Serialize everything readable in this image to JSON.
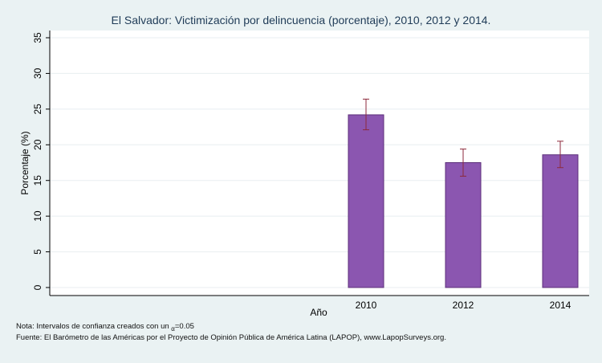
{
  "chart_data": {
    "type": "bar",
    "title": "El Salvador: Victimización por delincuencia (porcentaje), 2010, 2012 y 2014.",
    "xlabel": "Año",
    "ylabel": "Porcentaje (%)",
    "categories": [
      "2010",
      "2012",
      "2014"
    ],
    "values": [
      24.2,
      17.5,
      18.6
    ],
    "ci_low": [
      22.1,
      15.6,
      16.8
    ],
    "ci_high": [
      26.4,
      19.4,
      20.5
    ],
    "ylim": [
      0,
      36
    ],
    "yticks": [
      0,
      5,
      10,
      15,
      20,
      25,
      30,
      35
    ],
    "bar_color": "#8b56b0",
    "errorbar_color": "#8c2a3c",
    "grid": true
  },
  "notes": {
    "line1_prefix": "Nota: Intervalos de confianza creados con un ",
    "alpha_symbol": "α",
    "line1_suffix": "=0.05",
    "line2": "Fuente: El Barómetro de las Américas por el Proyecto de Opinión Pública de América Latina (LAPOP), www.LapopSurveys.org."
  }
}
